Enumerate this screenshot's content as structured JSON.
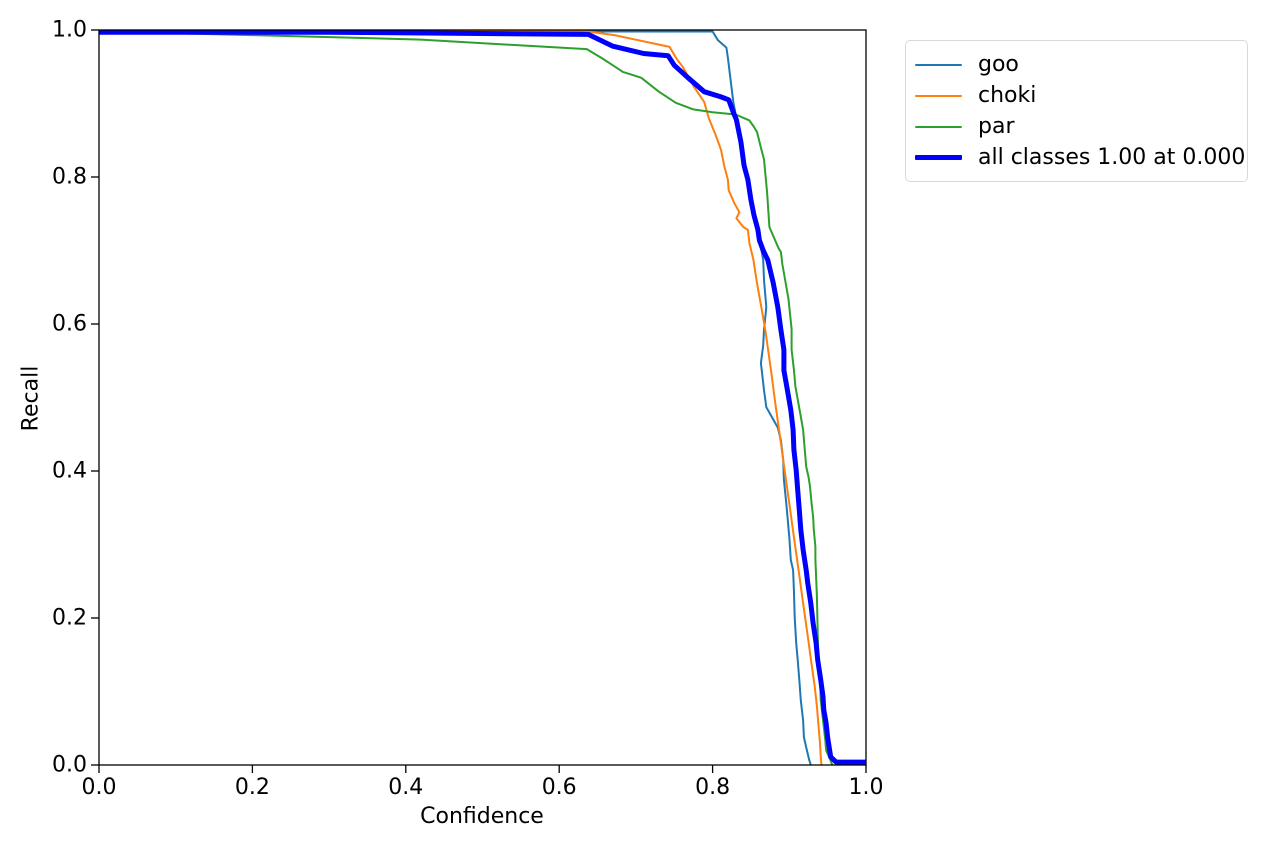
{
  "chart_data": {
    "type": "line",
    "title": "",
    "xlabel": "Confidence",
    "ylabel": "Recall",
    "xlim": [
      0.0,
      1.0
    ],
    "ylim": [
      0.0,
      1.0
    ],
    "grid": false,
    "legend_position": "outside-upper-right",
    "x_tick_values": [
      0.0,
      0.2,
      0.4,
      0.6,
      0.8,
      1.0
    ],
    "y_tick_values": [
      0.0,
      0.2,
      0.4,
      0.6,
      0.8,
      1.0
    ],
    "x_tick_labels": [
      "0.0",
      "0.2",
      "0.4",
      "0.6",
      "0.8",
      "1.0"
    ],
    "y_tick_labels": [
      "0.0",
      "0.2",
      "0.4",
      "0.6",
      "0.8",
      "1.0"
    ],
    "axis_color": "#000000",
    "background_color": "#ffffff",
    "series": [
      {
        "name": "goo",
        "color": "#1f77b4",
        "line_width": 2,
        "points": [
          [
            0.0,
            0.998
          ],
          [
            0.35,
            0.998
          ],
          [
            0.65,
            0.998
          ],
          [
            0.8,
            0.998
          ],
          [
            0.807,
            0.986
          ],
          [
            0.818,
            0.976
          ],
          [
            0.82,
            0.962
          ],
          [
            0.827,
            0.902
          ],
          [
            0.831,
            0.88
          ],
          [
            0.838,
            0.835
          ],
          [
            0.845,
            0.795
          ],
          [
            0.851,
            0.762
          ],
          [
            0.856,
            0.742
          ],
          [
            0.859,
            0.728
          ],
          [
            0.866,
            0.687
          ],
          [
            0.867,
            0.66
          ],
          [
            0.87,
            0.623
          ],
          [
            0.867,
            0.592
          ],
          [
            0.866,
            0.571
          ],
          [
            0.863,
            0.547
          ],
          [
            0.867,
            0.51
          ],
          [
            0.87,
            0.487
          ],
          [
            0.885,
            0.459
          ],
          [
            0.889,
            0.442
          ],
          [
            0.892,
            0.415
          ],
          [
            0.893,
            0.388
          ],
          [
            0.896,
            0.357
          ],
          [
            0.898,
            0.333
          ],
          [
            0.9,
            0.31
          ],
          [
            0.902,
            0.279
          ],
          [
            0.905,
            0.265
          ],
          [
            0.906,
            0.238
          ],
          [
            0.907,
            0.201
          ],
          [
            0.909,
            0.166
          ],
          [
            0.911,
            0.143
          ],
          [
            0.913,
            0.116
          ],
          [
            0.915,
            0.088
          ],
          [
            0.918,
            0.061
          ],
          [
            0.919,
            0.038
          ],
          [
            0.922,
            0.024
          ],
          [
            0.926,
            0.007
          ],
          [
            0.928,
            0.0
          ]
        ]
      },
      {
        "name": "choki",
        "color": "#ff7f0e",
        "line_width": 2,
        "points": [
          [
            0.0,
            0.999
          ],
          [
            0.35,
            0.999
          ],
          [
            0.63,
            0.999
          ],
          [
            0.672,
            0.993
          ],
          [
            0.744,
            0.977
          ],
          [
            0.753,
            0.961
          ],
          [
            0.761,
            0.95
          ],
          [
            0.775,
            0.924
          ],
          [
            0.789,
            0.902
          ],
          [
            0.795,
            0.88
          ],
          [
            0.804,
            0.857
          ],
          [
            0.811,
            0.837
          ],
          [
            0.815,
            0.816
          ],
          [
            0.82,
            0.796
          ],
          [
            0.821,
            0.782
          ],
          [
            0.828,
            0.765
          ],
          [
            0.835,
            0.752
          ],
          [
            0.831,
            0.744
          ],
          [
            0.84,
            0.732
          ],
          [
            0.846,
            0.728
          ],
          [
            0.848,
            0.71
          ],
          [
            0.853,
            0.688
          ],
          [
            0.858,
            0.655
          ],
          [
            0.864,
            0.62
          ],
          [
            0.869,
            0.59
          ],
          [
            0.873,
            0.56
          ],
          [
            0.877,
            0.53
          ],
          [
            0.881,
            0.498
          ],
          [
            0.885,
            0.468
          ],
          [
            0.889,
            0.438
          ],
          [
            0.893,
            0.408
          ],
          [
            0.897,
            0.378
          ],
          [
            0.901,
            0.348
          ],
          [
            0.905,
            0.318
          ],
          [
            0.909,
            0.288
          ],
          [
            0.913,
            0.258
          ],
          [
            0.917,
            0.228
          ],
          [
            0.921,
            0.198
          ],
          [
            0.925,
            0.168
          ],
          [
            0.929,
            0.138
          ],
          [
            0.933,
            0.108
          ],
          [
            0.936,
            0.08
          ],
          [
            0.938,
            0.055
          ],
          [
            0.94,
            0.03
          ],
          [
            0.941,
            0.012
          ],
          [
            0.942,
            0.0
          ]
        ]
      },
      {
        "name": "par",
        "color": "#2ca02c",
        "line_width": 2,
        "points": [
          [
            0.0,
            0.998
          ],
          [
            0.2,
            0.993
          ],
          [
            0.42,
            0.987
          ],
          [
            0.55,
            0.979
          ],
          [
            0.636,
            0.974
          ],
          [
            0.655,
            0.962
          ],
          [
            0.67,
            0.952
          ],
          [
            0.683,
            0.943
          ],
          [
            0.707,
            0.935
          ],
          [
            0.73,
            0.916
          ],
          [
            0.752,
            0.901
          ],
          [
            0.775,
            0.892
          ],
          [
            0.8,
            0.888
          ],
          [
            0.83,
            0.885
          ],
          [
            0.848,
            0.877
          ],
          [
            0.854,
            0.868
          ],
          [
            0.858,
            0.861
          ],
          [
            0.863,
            0.84
          ],
          [
            0.867,
            0.824
          ],
          [
            0.871,
            0.779
          ],
          [
            0.874,
            0.732
          ],
          [
            0.886,
            0.703
          ],
          [
            0.889,
            0.698
          ],
          [
            0.891,
            0.681
          ],
          [
            0.899,
            0.634
          ],
          [
            0.903,
            0.593
          ],
          [
            0.903,
            0.565
          ],
          [
            0.906,
            0.538
          ],
          [
            0.908,
            0.515
          ],
          [
            0.915,
            0.474
          ],
          [
            0.918,
            0.456
          ],
          [
            0.922,
            0.406
          ],
          [
            0.925,
            0.392
          ],
          [
            0.927,
            0.379
          ],
          [
            0.929,
            0.357
          ],
          [
            0.931,
            0.338
          ],
          [
            0.932,
            0.32
          ],
          [
            0.934,
            0.297
          ],
          [
            0.934,
            0.279
          ],
          [
            0.936,
            0.23
          ],
          [
            0.937,
            0.18
          ],
          [
            0.938,
            0.143
          ],
          [
            0.94,
            0.116
          ],
          [
            0.941,
            0.089
          ],
          [
            0.944,
            0.061
          ],
          [
            0.947,
            0.034
          ],
          [
            0.948,
            0.02
          ],
          [
            0.953,
            0.008
          ],
          [
            0.956,
            0.0
          ]
        ]
      },
      {
        "name": "all classes 1.00 at 0.000",
        "color": "#0000ff",
        "line_width": 5,
        "points": [
          [
            0.0,
            0.997
          ],
          [
            0.3,
            0.997
          ],
          [
            0.638,
            0.994
          ],
          [
            0.67,
            0.978
          ],
          [
            0.71,
            0.968
          ],
          [
            0.742,
            0.965
          ],
          [
            0.75,
            0.952
          ],
          [
            0.768,
            0.935
          ],
          [
            0.789,
            0.916
          ],
          [
            0.811,
            0.909
          ],
          [
            0.821,
            0.905
          ],
          [
            0.827,
            0.888
          ],
          [
            0.831,
            0.878
          ],
          [
            0.837,
            0.847
          ],
          [
            0.841,
            0.816
          ],
          [
            0.846,
            0.796
          ],
          [
            0.85,
            0.769
          ],
          [
            0.854,
            0.748
          ],
          [
            0.859,
            0.728
          ],
          [
            0.861,
            0.714
          ],
          [
            0.866,
            0.7
          ],
          [
            0.872,
            0.687
          ],
          [
            0.879,
            0.656
          ],
          [
            0.885,
            0.623
          ],
          [
            0.889,
            0.592
          ],
          [
            0.893,
            0.565
          ],
          [
            0.893,
            0.537
          ],
          [
            0.898,
            0.507
          ],
          [
            0.902,
            0.483
          ],
          [
            0.905,
            0.456
          ],
          [
            0.906,
            0.429
          ],
          [
            0.909,
            0.401
          ],
          [
            0.911,
            0.374
          ],
          [
            0.913,
            0.347
          ],
          [
            0.915,
            0.32
          ],
          [
            0.918,
            0.293
          ],
          [
            0.922,
            0.265
          ],
          [
            0.924,
            0.248
          ],
          [
            0.928,
            0.22
          ],
          [
            0.931,
            0.193
          ],
          [
            0.935,
            0.166
          ],
          [
            0.937,
            0.143
          ],
          [
            0.941,
            0.116
          ],
          [
            0.944,
            0.093
          ],
          [
            0.945,
            0.075
          ],
          [
            0.948,
            0.057
          ],
          [
            0.95,
            0.038
          ],
          [
            0.952,
            0.024
          ],
          [
            0.954,
            0.011
          ],
          [
            0.961,
            0.004
          ],
          [
            0.963,
            0.004
          ],
          [
            1.0,
            0.004
          ]
        ]
      }
    ]
  }
}
